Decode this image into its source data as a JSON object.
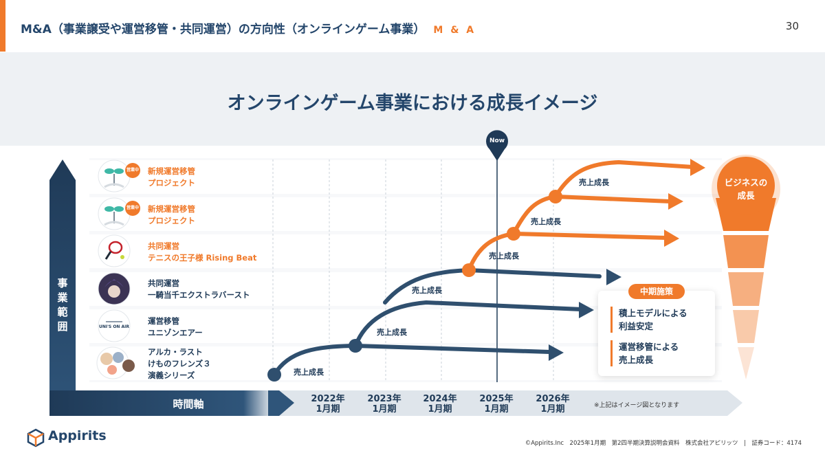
{
  "header": {
    "title": "M&A（事業譲受や運営移管・共同運営）の方向性（オンラインゲーム事業）",
    "tag": "M & A",
    "page_number": "30"
  },
  "banner": {
    "title": "オンラインゲーム事業における成長イメージ"
  },
  "axes": {
    "y_label": "事業範囲",
    "x_label": "時間軸"
  },
  "now_label": "Now",
  "years": [
    {
      "year": "2022年",
      "period": "1月期"
    },
    {
      "year": "2023年",
      "period": "1月期"
    },
    {
      "year": "2024年",
      "period": "1月期"
    },
    {
      "year": "2025年",
      "period": "1月期"
    },
    {
      "year": "2026年",
      "period": "1月期"
    }
  ],
  "note": "※上記はイメージ図となります",
  "rows": [
    {
      "line1": "新規運営移管",
      "line2": "プロジェクト",
      "line3": "",
      "badge": "営業中",
      "icon": "sprout-icon",
      "color": "orange"
    },
    {
      "line1": "新規運営移管",
      "line2": "プロジェクト",
      "line3": "",
      "badge": "営業中",
      "icon": "sprout-icon",
      "color": "orange"
    },
    {
      "line1": "共同運営",
      "line2": "テニスの王子様 Rising Beat",
      "line3": "",
      "icon": "tennis-racket-icon",
      "color": "orange"
    },
    {
      "line1": "共同運営",
      "line2": "一騎当千エクストラバースト",
      "line3": "",
      "icon": "anime-character-icon",
      "color": "navy"
    },
    {
      "line1": "運営移管",
      "line2": "ユニゾンエアー",
      "line3": "",
      "logo_text": "UNI'S ON AIR",
      "icon": "unisonair-logo-icon",
      "color": "navy"
    },
    {
      "line1": "アルカ・ラスト",
      "line2": "けものフレンズ３",
      "line3": "演義シリーズ",
      "icon": "game-characters-icon",
      "color": "navy"
    }
  ],
  "growth_label": "売上成長",
  "business_growth": {
    "line1": "ビジネスの",
    "line2": "成長"
  },
  "mid_term": {
    "title": "中期施策",
    "items": [
      {
        "line1": "積上モデルによる",
        "line2": "利益安定"
      },
      {
        "line1": "運営移管による",
        "line2": "売上成長"
      }
    ]
  },
  "colors": {
    "accent": "#f07a2b",
    "navy": "#24466b",
    "curve_navy": "#2f4f6e"
  },
  "footer": {
    "logo": "Appirits",
    "text": "©Appirits.Inc　2025年1月期　第2四半期決算説明会資料　株式会社アピリッツ　|　証券コード：4174"
  }
}
